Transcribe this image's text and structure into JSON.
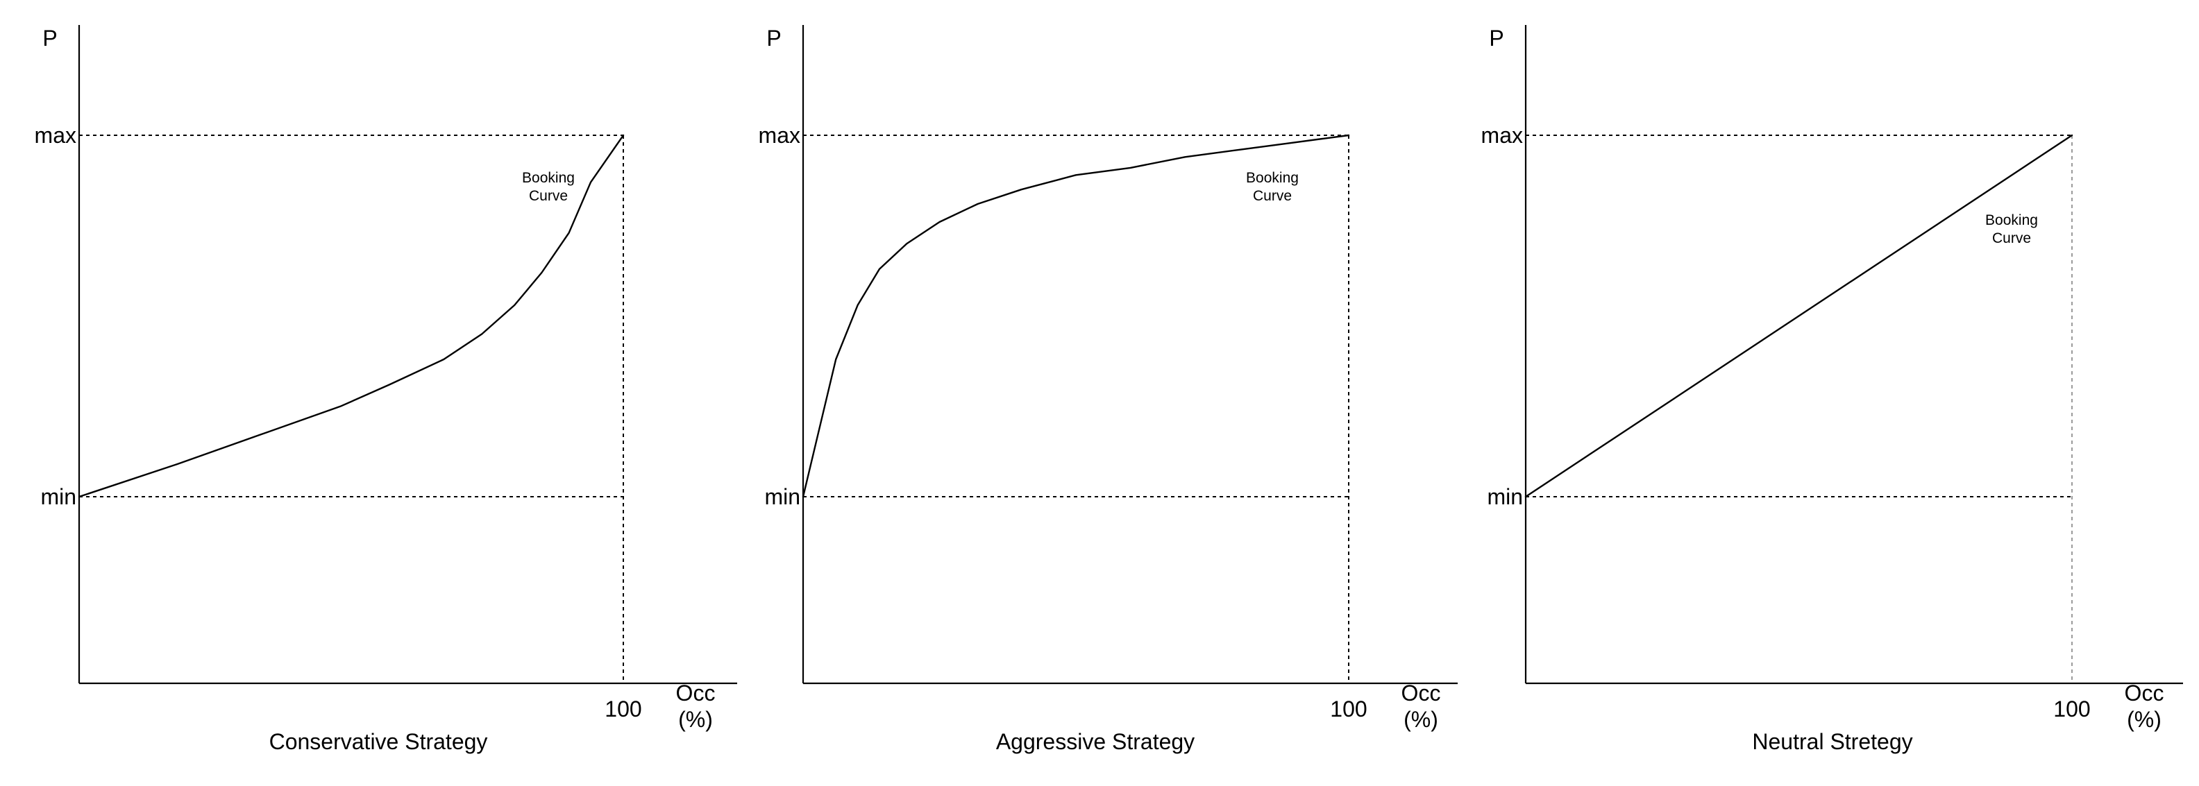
{
  "chart_data": [
    {
      "type": "line",
      "title": "Conservative Strategy",
      "ylabel": "P",
      "xlabel_lines": [
        "Occ",
        "(%)"
      ],
      "xtick_label": "100",
      "ytick_labels": {
        "max": "max",
        "min": "min"
      },
      "annotation_lines": [
        "Booking",
        "Curve"
      ],
      "xlim": [
        0,
        120
      ],
      "ylim": [
        -0.52,
        1.52
      ],
      "guides": {
        "x": 100,
        "y_levels": [
          0,
          1
        ],
        "style": "dashed"
      },
      "series": [
        {
          "x": [
            0,
            18,
            33,
            48,
            57,
            67,
            74,
            80,
            85,
            90,
            94,
            100
          ],
          "y": [
            0,
            0.09,
            0.17,
            0.25,
            0.31,
            0.38,
            0.45,
            0.53,
            0.62,
            0.73,
            0.87,
            1.0
          ]
        }
      ]
    },
    {
      "type": "line",
      "title": "Aggressive Strategy",
      "ylabel": "P",
      "xlabel_lines": [
        "Occ",
        "(%)"
      ],
      "xtick_label": "100",
      "ytick_labels": {
        "max": "max",
        "min": "min"
      },
      "annotation_lines": [
        "Booking",
        "Curve"
      ],
      "xlim": [
        0,
        120
      ],
      "ylim": [
        -0.52,
        1.52
      ],
      "guides": {
        "x": 100,
        "y_levels": [
          0,
          1
        ],
        "style": "dashed"
      },
      "series": [
        {
          "x": [
            0,
            3,
            6,
            10,
            14,
            19,
            25,
            32,
            40,
            50,
            60,
            70,
            80,
            90,
            100
          ],
          "y": [
            0,
            0.19,
            0.38,
            0.53,
            0.63,
            0.7,
            0.76,
            0.81,
            0.85,
            0.89,
            0.91,
            0.94,
            0.96,
            0.98,
            1.0
          ]
        }
      ]
    },
    {
      "type": "line",
      "title": "Neutral Stretegy",
      "ylabel": "P",
      "xlabel_lines": [
        "Occ",
        "(%)"
      ],
      "xtick_label": "100",
      "ytick_labels": {
        "max": "max",
        "min": "min"
      },
      "annotation_lines": [
        "Booking",
        "Curve"
      ],
      "xlim": [
        0,
        120
      ],
      "ylim": [
        -0.52,
        1.52
      ],
      "guides": {
        "x": 100,
        "y_levels": [
          0,
          1
        ],
        "style": "dashed-light"
      },
      "series": [
        {
          "x": [
            0,
            100
          ],
          "y": [
            0,
            1.0
          ]
        }
      ]
    }
  ]
}
